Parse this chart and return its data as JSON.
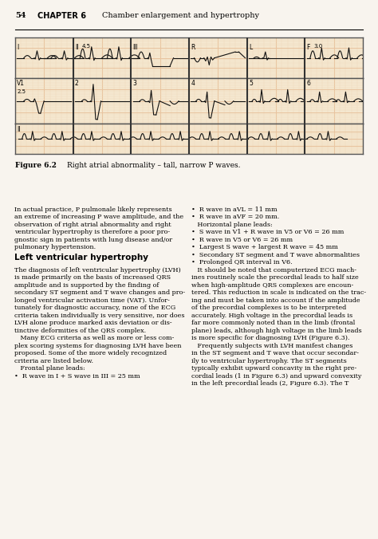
{
  "title_page": "54   CHAPTER 6  Chamber enlargement and hypertrophy",
  "figure_caption": "Figure 6.2  Right atrial abnormality – tall, narrow P waves.",
  "body_text_left": [
    "In actual practice, P pulmonale likely represents",
    "an extreme of increasing P wave amplitude, and the",
    "observation of right atrial abnormality and right",
    "ventricular hypertrophy is therefore a poor pro-",
    "gnostic sign in patients with lung disease and/or",
    "pulmonary hypertension.",
    "",
    "Left ventricular hypertrophy",
    "",
    "The diagnosis of left ventricular hypertrophy (LVH)",
    "is made primarily on the basis of increased QRS",
    "amplitude and is supported by the finding of",
    "secondary ST segment and T wave changes and pro-",
    "longed ventricular activation time (VAT). Unfor-",
    "tunately for diagnostic accuracy, none of the ECG",
    "criteria taken individually is very sensitive, nor does",
    "LVH alone produce marked axis deviation or dis-",
    "tinctive deformities of the QRS complex.",
    "   Many ECG criteria as well as more or less com-",
    "plex scoring systems for diagnosing LVH have been",
    "proposed. Some of the more widely recognized",
    "criteria are listed below.",
    "   Frontal plane leads:",
    "•  R wave in I + S wave in III = 25 mm"
  ],
  "body_text_right": [
    "•  R wave in aVL = 11 mm",
    "•  R wave in aVF = 20 mm.",
    "   Horizontal plane leads:",
    "•  S wave in V1 + R wave in V5 or V6 = 26 mm",
    "•  R wave in V5 or V6 = 26 mm",
    "•  Largest S wave + largest R wave = 45 mm",
    "•  Secondary ST segment and T wave abnormalities",
    "•  Prolonged QR interval in V6.",
    "   It should be noted that computerized ECG mach-",
    "ines routinely scale the precordial leads to half size",
    "when high-amplitude QRS complexes are encoun-",
    "tered. This reduction in scale is indicated on the trac-",
    "ing and must be taken into account if the amplitude",
    "of the precordial complexes is to be interpreted",
    "accurately. High voltage in the precordial leads is",
    "far more commonly noted than in the limb (frontal",
    "plane) leads, although high voltage in the limb leads",
    "is more specific for diagnosing LVH (Figure 6.3).",
    "   Frequently subjects with LVH manifest changes",
    "in the ST segment and T wave that occur secondar-",
    "ily to ventricular hypertrophy. The ST segments",
    "typically exhibit upward concavity in the right pre-",
    "cordial leads (1 in Figure 6.3) and upward convexity",
    "in the left precordial leads (2, Figure 6.3). The T"
  ],
  "ecg_bg": "#f5e8d0",
  "ecg_grid_major": "#e8c4a0",
  "ecg_grid_minor": "#f0d8b8",
  "ecg_line": "#111111",
  "page_bg": "#f8f4ee",
  "lead_labels_row1": [
    "I",
    "II  4.5",
    "III",
    "R",
    "L",
    "F  3.0"
  ],
  "lead_labels_row2": [
    "V1",
    "2",
    "3",
    "4",
    "5",
    "6"
  ],
  "lead_label_row2_extra": "2.5",
  "lead_label_row3": "II"
}
